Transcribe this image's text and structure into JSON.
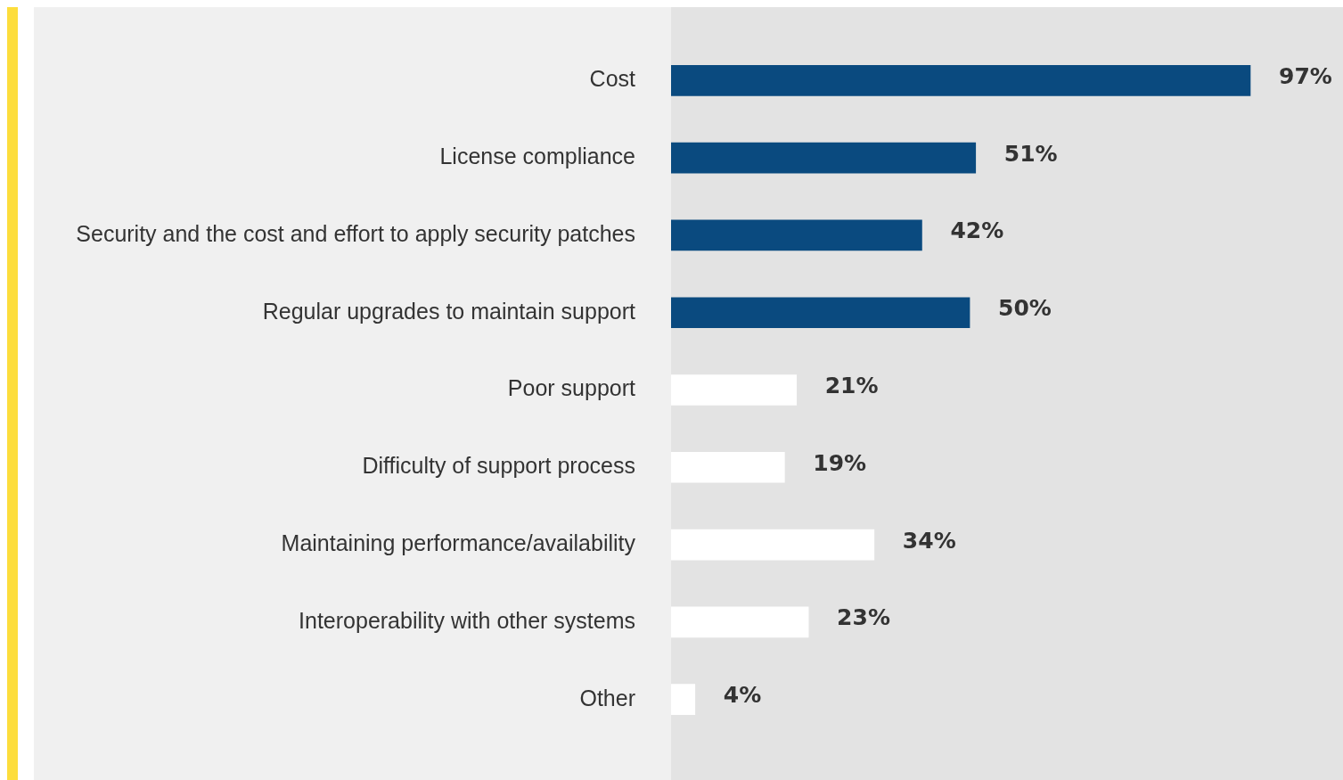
{
  "chart_data": {
    "type": "bar",
    "orientation": "horizontal",
    "categories": [
      "Cost",
      "License compliance",
      "Security and the cost and effort to apply security patches",
      "Regular upgrades to maintain support",
      "Poor support",
      "Difficulty of support process",
      "Maintaining performance/availability",
      "Interoperability with other systems",
      "Other"
    ],
    "values": [
      97,
      51,
      42,
      50,
      21,
      19,
      34,
      23,
      4
    ],
    "colors": [
      "#0a4a7f",
      "#0a4a7f",
      "#0a4a7f",
      "#0a4a7f",
      "#ffffff",
      "#ffffff",
      "#ffffff",
      "#ffffff",
      "#ffffff"
    ],
    "value_labels": [
      "97%",
      "51%",
      "42%",
      "50%",
      "21%",
      "19%",
      "34%",
      "23%",
      "4%"
    ],
    "legend": false
  }
}
